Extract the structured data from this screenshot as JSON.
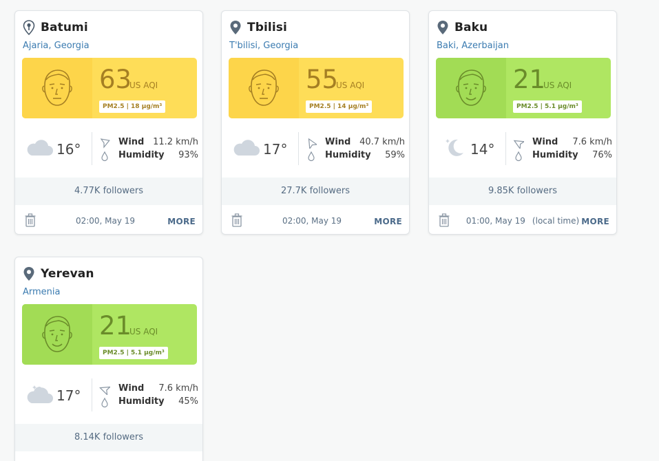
{
  "colors": {
    "moderate_bg": "#fedd58",
    "moderate_face_bg": "#fdd54a",
    "moderate_text": "#a57f23",
    "good_bg": "#afe662",
    "good_face_bg": "#a2dc55",
    "good_text": "#6a8c2a",
    "link": "#3b7bb0"
  },
  "cards": [
    {
      "city": "Batumi",
      "region": "Ajaria, Georgia",
      "aqi": "63",
      "aqi_unit": "US AQI",
      "pm": "PM2.5 | 18 µg/m³",
      "level": "moderate",
      "weather_icon": "cloud-icon",
      "temp": "16°",
      "wind_label": "Wind",
      "wind": "11.2 km/h",
      "humidity_label": "Humidity",
      "humidity": "93%",
      "followers": "4.77K followers",
      "time": "02:00, May 19",
      "time_note": "",
      "more": "MORE"
    },
    {
      "city": "Tbilisi",
      "region": "T'bilisi, Georgia",
      "aqi": "55",
      "aqi_unit": "US AQI",
      "pm": "PM2.5 | 14 µg/m³",
      "level": "moderate",
      "weather_icon": "cloud-icon",
      "temp": "17°",
      "wind_label": "Wind",
      "wind": "40.7 km/h",
      "humidity_label": "Humidity",
      "humidity": "59%",
      "followers": "27.7K followers",
      "time": "02:00, May 19",
      "time_note": "",
      "more": "MORE"
    },
    {
      "city": "Baku",
      "region": "Baki, Azerbaijan",
      "aqi": "21",
      "aqi_unit": "US AQI",
      "pm": "PM2.5 | 5.1 µg/m³",
      "level": "good",
      "weather_icon": "moon-icon",
      "temp": "14°",
      "wind_label": "Wind",
      "wind": "7.6 km/h",
      "humidity_label": "Humidity",
      "humidity": "76%",
      "followers": "9.85K followers",
      "time": "01:00, May 19",
      "time_note": "(local time)",
      "more": "MORE"
    },
    {
      "city": "Yerevan",
      "region": "Armenia",
      "aqi": "21",
      "aqi_unit": "US AQI",
      "pm": "PM2.5 | 5.1 µg/m³",
      "level": "good",
      "weather_icon": "partly-cloudy-icon",
      "temp": "17°",
      "wind_label": "Wind",
      "wind": "7.6 km/h",
      "humidity_label": "Humidity",
      "humidity": "45%",
      "followers": "8.14K followers",
      "time": "",
      "time_note": "",
      "more": ""
    }
  ]
}
